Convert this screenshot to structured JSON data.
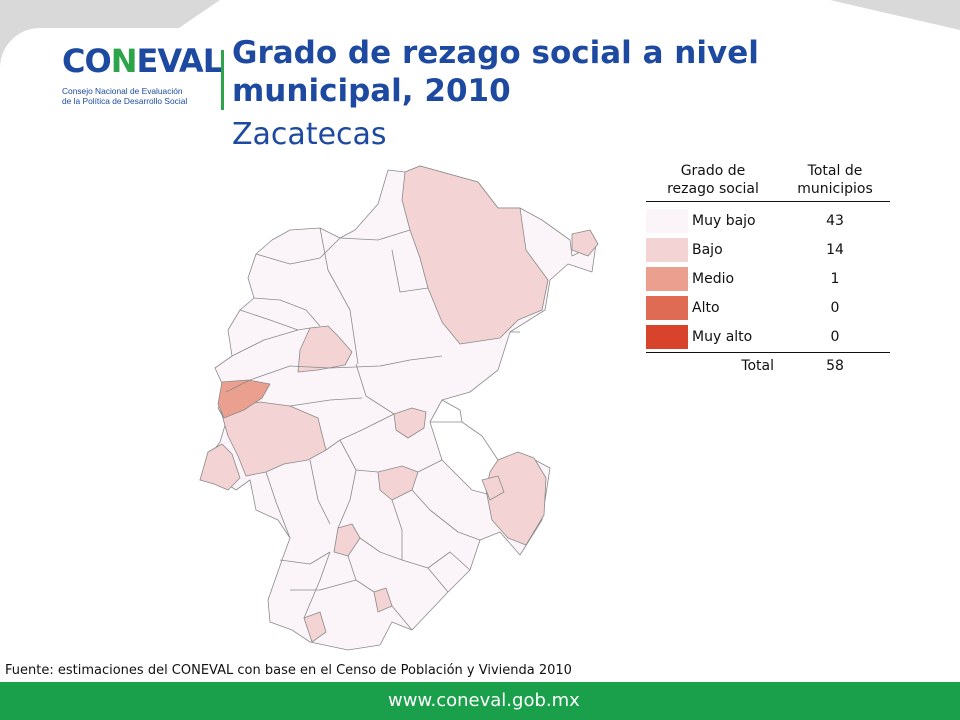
{
  "header": {
    "logo_word_a": "CO",
    "logo_word_b": "N",
    "logo_word_c": "EVAL",
    "logo_line1": "Consejo Nacional de Evaluación",
    "logo_line2": "de la Política de Desarrollo Social",
    "title_line1": "Grado de rezago social a nivel",
    "title_line2": "municipal, 2010",
    "subtitle": "Zacatecas"
  },
  "legend": {
    "col1_line1": "Grado de",
    "col1_line2": "rezago social",
    "col2_line1": "Total de",
    "col2_line2": "municipios",
    "rows": [
      {
        "label": "Muy bajo",
        "count": "43",
        "color": "#fbf5fa"
      },
      {
        "label": "Bajo",
        "count": "14",
        "color": "#f3d3d3"
      },
      {
        "label": "Medio",
        "count": "1",
        "color": "#eba08f"
      },
      {
        "label": "Alto",
        "count": "0",
        "color": "#df6b55"
      },
      {
        "label": "Muy alto",
        "count": "0",
        "color": "#d8432b"
      }
    ],
    "total_label": "Total",
    "total_count": "58"
  },
  "source": "Fuente: estimaciones del CONEVAL con base en el Censo de Población y Vivienda 2010",
  "footer": {
    "url": "www.coneval.gob.mx"
  },
  "colors": {
    "brand_blue": "#1d4aa0",
    "brand_green": "#1aa04b",
    "muy_bajo": "#fbf5fa",
    "bajo": "#f3d3d3",
    "medio": "#eba08f"
  }
}
